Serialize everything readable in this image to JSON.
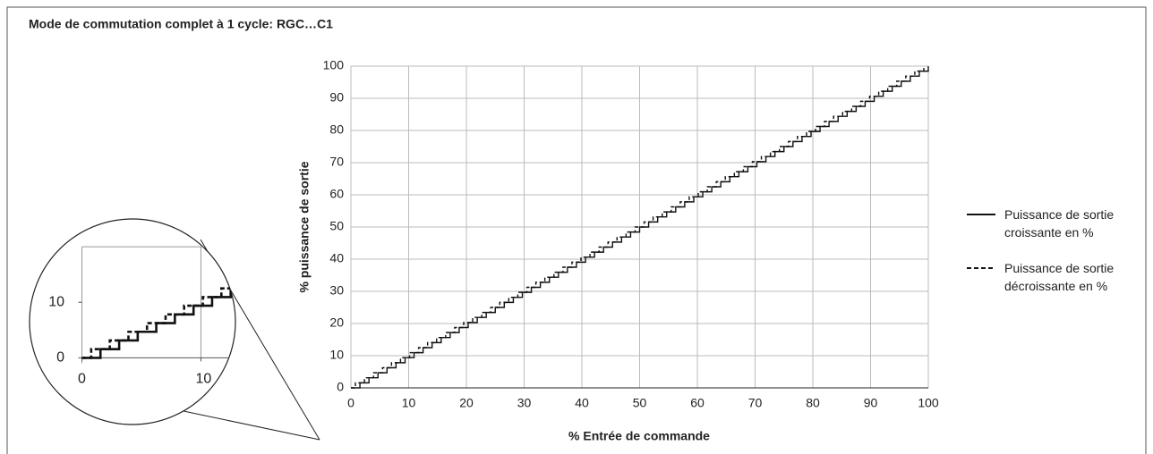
{
  "chart_data": {
    "type": "step",
    "title": "Mode de commutation complet à 1 cycle: RGC…C1",
    "x_label": "% Entrée de commande",
    "y_label": "% puissance de sortie",
    "xlim": [
      0,
      100
    ],
    "ylim": [
      0,
      100
    ],
    "xticks": [
      0,
      10,
      20,
      30,
      40,
      50,
      60,
      70,
      80,
      90,
      100
    ],
    "yticks": [
      0,
      10,
      20,
      30,
      40,
      50,
      60,
      70,
      80,
      90,
      100
    ],
    "grid": true,
    "series": [
      {
        "name": "Puissance de sortie croissante en %",
        "color": "#111111",
        "dash": false,
        "x": [
          0,
          1.56,
          3.13,
          4.69,
          6.25,
          7.81,
          9.38,
          10.94,
          12.5,
          14.06,
          15.63,
          17.19,
          18.75,
          20.31,
          21.88,
          23.44,
          25,
          26.56,
          28.13,
          29.69,
          31.25,
          32.81,
          34.38,
          35.94,
          37.5,
          39.06,
          40.63,
          42.19,
          43.75,
          45.31,
          46.88,
          48.44,
          50,
          51.56,
          53.13,
          54.69,
          56.25,
          57.81,
          59.38,
          60.94,
          62.5,
          64.06,
          65.63,
          67.19,
          68.75,
          70.31,
          71.88,
          73.44,
          75,
          76.56,
          78.13,
          79.69,
          81.25,
          82.81,
          84.38,
          85.94,
          87.5,
          89.06,
          90.63,
          92.19,
          93.75,
          95.31,
          96.88,
          98.44,
          100
        ],
        "values": [
          0,
          1.56,
          3.13,
          4.69,
          6.25,
          7.81,
          9.38,
          10.94,
          12.5,
          14.06,
          15.63,
          17.19,
          18.75,
          20.31,
          21.88,
          23.44,
          25,
          26.56,
          28.13,
          29.69,
          31.25,
          32.81,
          34.38,
          35.94,
          37.5,
          39.06,
          40.63,
          42.19,
          43.75,
          45.31,
          46.88,
          48.44,
          50,
          51.56,
          53.13,
          54.69,
          56.25,
          57.81,
          59.38,
          60.94,
          62.5,
          64.06,
          65.63,
          67.19,
          68.75,
          70.31,
          71.88,
          73.44,
          75,
          76.56,
          78.13,
          79.69,
          81.25,
          82.81,
          84.38,
          85.94,
          87.5,
          89.06,
          90.63,
          92.19,
          93.75,
          95.31,
          96.88,
          98.44,
          100
        ]
      },
      {
        "name": "Puissance de sortie décroissante en %",
        "color": "#111111",
        "dash": true,
        "x": [
          0,
          0.78,
          2.34,
          3.91,
          5.47,
          7.03,
          8.59,
          10.16,
          11.72,
          13.28,
          14.84,
          16.41,
          17.97,
          19.53,
          21.09,
          22.66,
          24.22,
          25.78,
          27.34,
          28.91,
          30.47,
          32.03,
          33.59,
          35.16,
          36.72,
          38.28,
          39.84,
          41.41,
          42.97,
          44.53,
          46.09,
          47.66,
          49.22,
          50.78,
          52.34,
          53.91,
          55.47,
          57.03,
          58.59,
          60.16,
          61.72,
          63.28,
          64.84,
          66.41,
          67.97,
          69.53,
          71.09,
          72.66,
          74.22,
          75.78,
          77.34,
          78.91,
          80.47,
          82.03,
          83.59,
          85.16,
          86.72,
          88.28,
          89.84,
          91.41,
          92.97,
          94.53,
          96.09,
          97.66,
          99.22
        ],
        "values": [
          0,
          1.56,
          3.13,
          4.69,
          6.25,
          7.81,
          9.38,
          10.94,
          12.5,
          14.06,
          15.63,
          17.19,
          18.75,
          20.31,
          21.88,
          23.44,
          25,
          26.56,
          28.13,
          29.69,
          31.25,
          32.81,
          34.38,
          35.94,
          37.5,
          39.06,
          40.63,
          42.19,
          43.75,
          45.31,
          46.88,
          48.44,
          50,
          51.56,
          53.13,
          54.69,
          56.25,
          57.81,
          59.38,
          60.94,
          62.5,
          64.06,
          65.63,
          67.19,
          68.75,
          70.31,
          71.88,
          73.44,
          75,
          76.56,
          78.13,
          79.69,
          81.25,
          82.81,
          84.38,
          85.94,
          87.5,
          89.06,
          90.63,
          92.19,
          93.75,
          95.31,
          96.88,
          98.44,
          100
        ]
      }
    ],
    "inset": {
      "xlim": [
        -4.4,
        12.9
      ],
      "ylim": [
        -12,
        25
      ],
      "xticks": [
        0,
        10
      ],
      "yticks": [
        0,
        10
      ]
    }
  }
}
